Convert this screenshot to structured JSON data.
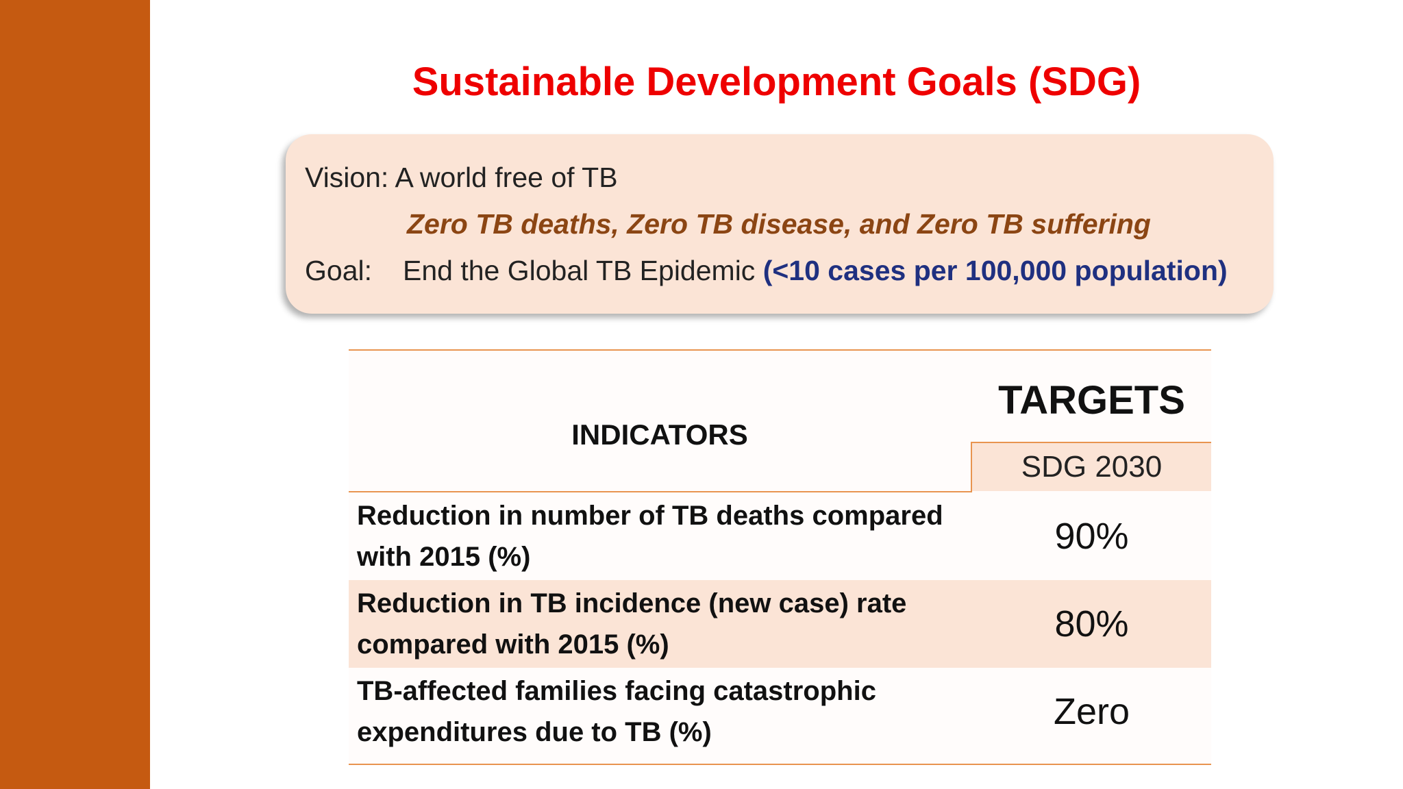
{
  "slide": {
    "title": "Sustainable Development Goals (SDG)",
    "vision_box": {
      "vision_line": "Vision: A world free of TB",
      "vision_subline": "Zero TB deaths, Zero TB disease, and Zero TB suffering",
      "goal_label": "Goal:",
      "goal_text": "End the Global TB Epidemic ",
      "goal_metric": "(<10 cases per 100,000 population)"
    },
    "table": {
      "indicators_header": "INDICATORS",
      "targets_header": "TARGETS",
      "targets_subheader": "SDG 2030",
      "rows": [
        {
          "indicator": "Reduction in number of TB deaths compared with 2015 (%)",
          "target": "90%"
        },
        {
          "indicator": "Reduction in TB incidence (new case) rate compared with 2015 (%)",
          "target": "80%"
        },
        {
          "indicator": "TB-affected families facing catastrophic expenditures due to TB (%)",
          "target": "Zero"
        }
      ]
    }
  },
  "colors": {
    "sidebar": "#c55a11",
    "title": "#ee0000",
    "box_fill": "#fbe4d6",
    "subline": "#8b4513",
    "goal_metric": "#1f3080",
    "table_rule": "#e8944f"
  }
}
